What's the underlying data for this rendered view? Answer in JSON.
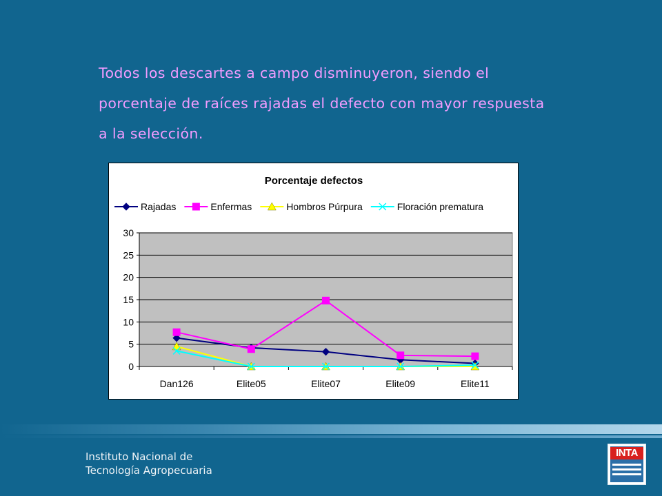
{
  "slide": {
    "lines": [
      "Todos los descartes a campo disminuyeron, siendo el",
      "porcentaje de raíces rajadas el defecto con mayor respuesta",
      "a la selección."
    ]
  },
  "footer": {
    "institute_line1": "Instituto Nacional de",
    "institute_line2": "Tecnología Agropecuaria",
    "logo_text": "INTA"
  },
  "colors": {
    "background": "#11658f",
    "text": "#f29cff",
    "plot_area": "#c0c0c0"
  },
  "chart_data": {
    "type": "line",
    "title": "Porcentaje defectos",
    "categories": [
      "Dan126",
      "Elite05",
      "Elite07",
      "Elite09",
      "Elite11"
    ],
    "ylim": [
      0,
      30
    ],
    "yticks": [
      0,
      5,
      10,
      15,
      20,
      25,
      30
    ],
    "grid": true,
    "legend": "top",
    "series": [
      {
        "name": "Rajadas",
        "values": [
          6.4,
          4.2,
          3.3,
          1.5,
          0.7
        ],
        "color": "#000080",
        "marker": "diamond"
      },
      {
        "name": "Enfermas",
        "values": [
          7.7,
          3.9,
          14.8,
          2.5,
          2.3
        ],
        "color": "#ff00ff",
        "marker": "square"
      },
      {
        "name": "Hombros Púrpura",
        "values": [
          4.5,
          0.0,
          0.0,
          0.0,
          0.0
        ],
        "color": "#ffff00",
        "marker": "triangle"
      },
      {
        "name": "Floración prematura",
        "values": [
          3.5,
          0.0,
          0.0,
          0.0,
          0.3
        ],
        "color": "#00ffff",
        "marker": "x"
      }
    ]
  }
}
